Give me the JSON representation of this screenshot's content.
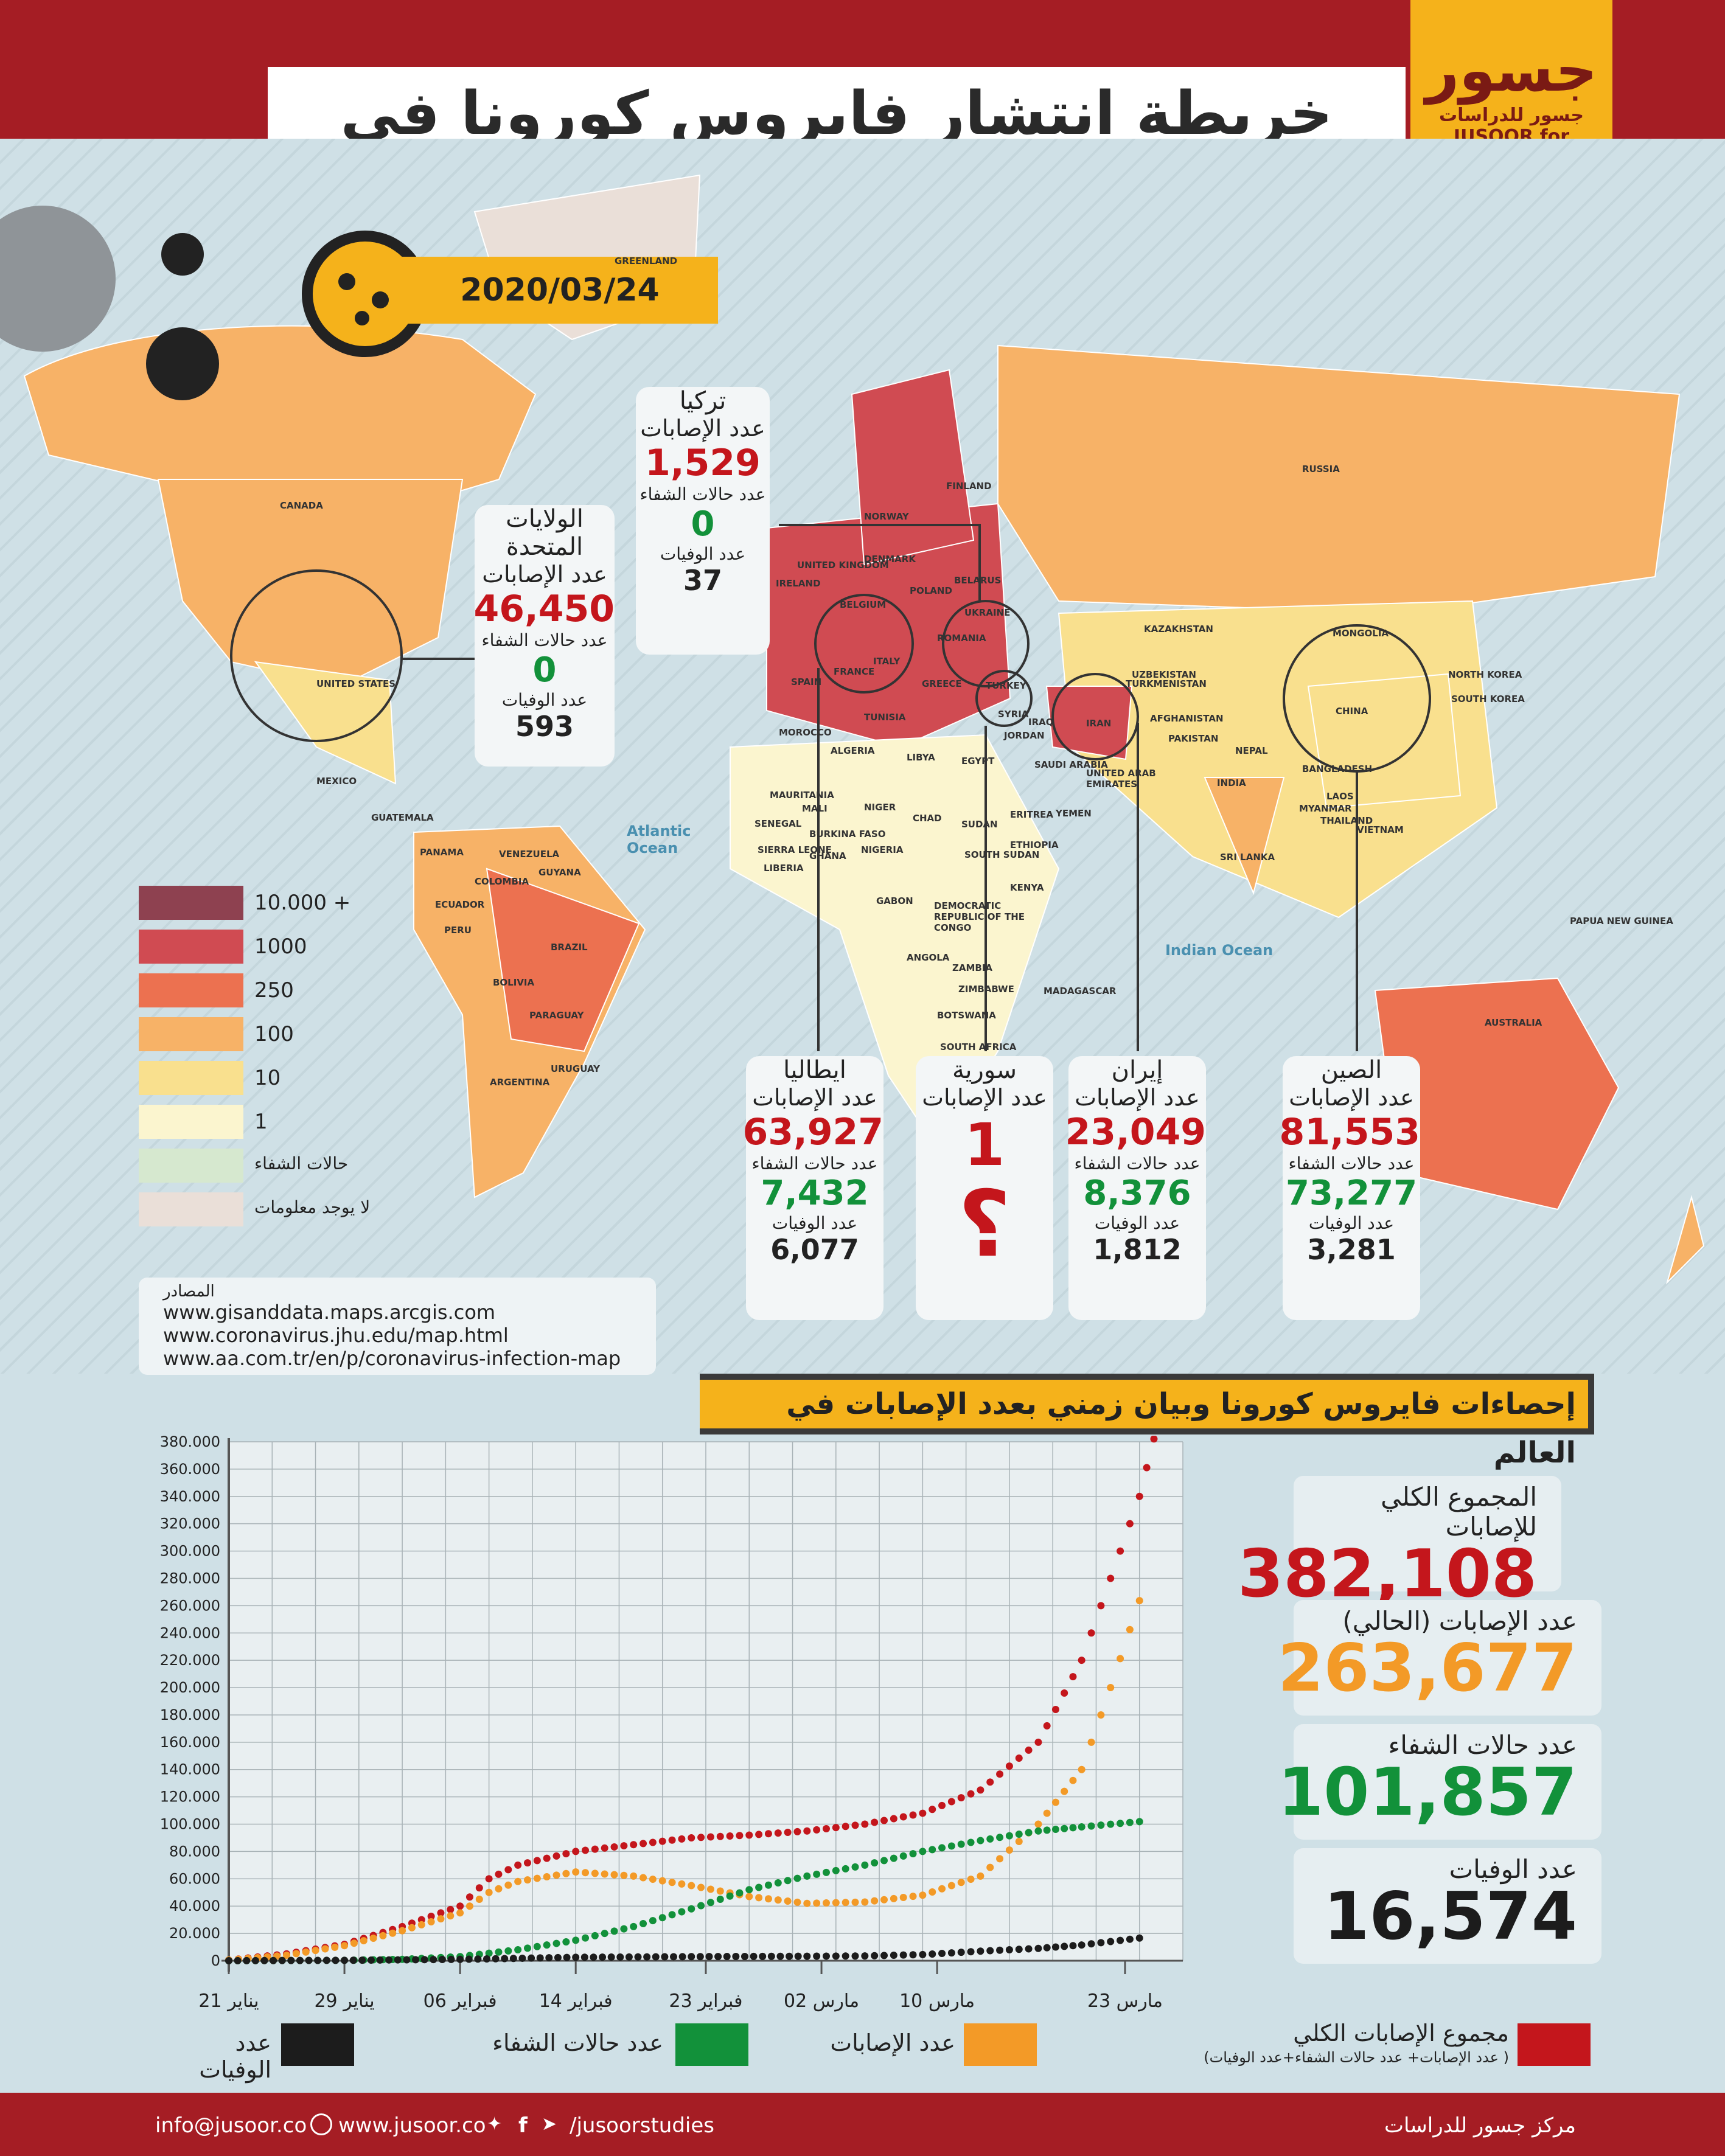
{
  "header": {
    "title": "خريطة انتشار فايروس كورونا في العالم",
    "logo_main": "جسور",
    "logo_ar": "جسور للدراسات",
    "logo_en": "JUSOOR for STUDIES",
    "date": "2020/03/24"
  },
  "map_labels": [
    "CANADA",
    "GREENLAND",
    "RUSSIA",
    "FINLAND",
    "NORWAY",
    "DENMARK",
    "UNITED KINGDOM",
    "IRELAND",
    "BELARUS",
    "POLAND",
    "UKRAINE",
    "ROMANIA",
    "BELGIUM",
    "FRANCE",
    "SPAIN",
    "ITALY",
    "GREECE",
    "TURKEY",
    "SYRIA",
    "IRAQ",
    "IRAN",
    "KAZAKHSTAN",
    "UZBEKISTAN",
    "TURKMENISTAN",
    "AFGHANISTAN",
    "PAKISTAN",
    "MONGOLIA",
    "CHINA",
    "NORTH KOREA",
    "SOUTH KOREA",
    "NEPAL",
    "BANGLADESH",
    "INDIA",
    "MYANMAR",
    "LAOS",
    "THAILAND",
    "VIETNAM",
    "SRI LANKA",
    "PAPUA NEW GUINEA",
    "AUSTRALIA",
    "UNITED STATES",
    "MEXICO",
    "GUATEMALA",
    "PANAMA",
    "VENEZUELA",
    "GUYANA",
    "COLOMBIA",
    "ECUADOR",
    "PERU",
    "BRAZIL",
    "BOLIVIA",
    "PARAGUAY",
    "ARGENTINA",
    "URUGUAY",
    "MOROCCO",
    "ALGERIA",
    "LIBYA",
    "EGYPT",
    "TUNISIA",
    "SAUDI ARABIA",
    "UNITED ARAB EMIRATES",
    "YEMEN",
    "JORDAN",
    "MAURITANIA",
    "MALI",
    "NIGER",
    "CHAD",
    "SUDAN",
    "ERITREA",
    "ETHIOPIA",
    "SOUTH SUDAN",
    "SENEGAL",
    "BURKINA FASO",
    "NIGERIA",
    "GHANA",
    "SIERRA LEONE",
    "LIBERIA",
    "GABON",
    "DEMOCRATIC REPUBLIC OF THE CONGO",
    "KENYA",
    "ANGOLA",
    "ZAMBIA",
    "ZIMBABWE",
    "BOTSWANA",
    "SOUTH AFRICA",
    "MADAGASCAR",
    "Atlantic Ocean",
    "Indian Ocean"
  ],
  "countries": {
    "usa": {
      "name": "الولايات المتحدة",
      "cases_label": "عدد الإصابات",
      "cases": "46,450",
      "rec_label": "عدد حالات الشفاء",
      "rec": "0",
      "deaths_label": "عدد الوفيات",
      "deaths": "593"
    },
    "turkey": {
      "name": "تركيا",
      "cases_label": "عدد الإصابات",
      "cases": "1,529",
      "rec_label": "عدد حالات الشفاء",
      "rec": "0",
      "deaths_label": "عدد الوفيات",
      "deaths": "37"
    },
    "italy": {
      "name": "ايطاليا",
      "cases_label": "عدد الإصابات",
      "cases": "63,927",
      "rec_label": "عدد حالات الشفاء",
      "rec": "7,432",
      "deaths_label": "عدد الوفيات",
      "deaths": "6,077"
    },
    "syria": {
      "name": "سورية",
      "cases_label": "عدد الإصابات",
      "cases": "1",
      "unknown": "؟"
    },
    "iran": {
      "name": "إيران",
      "cases_label": "عدد الإصابات",
      "cases": "23,049",
      "rec_label": "عدد حالات الشفاء",
      "rec": "8,376",
      "deaths_label": "عدد الوفيات",
      "deaths": "1,812"
    },
    "china": {
      "name": "الصين",
      "cases_label": "عدد الإصابات",
      "cases": "81,553",
      "rec_label": "عدد حالات الشفاء",
      "rec": "73,277",
      "deaths_label": "عدد الوفيات",
      "deaths": "3,281"
    }
  },
  "legend": [
    {
      "label": "10.000 +",
      "color": "#8e4150"
    },
    {
      "label": "1000",
      "color": "#d04b52"
    },
    {
      "label": "250",
      "color": "#ec7150"
    },
    {
      "label": "100",
      "color": "#f7b267"
    },
    {
      "label": "10",
      "color": "#f9e08e"
    },
    {
      "label": "1",
      "color": "#fbf5cf"
    },
    {
      "label": "حالات الشفاء",
      "color": "#d6e8cf"
    },
    {
      "label": "لا يوجد معلومات",
      "color": "#eadfd8"
    }
  ],
  "sources": {
    "title": "المصادر",
    "lines": [
      "www.gisanddata.maps.arcgis.com",
      "www.coronavirus.jhu.edu/map.html",
      "www.aa.com.tr/en/p/coronavirus-infection-map"
    ]
  },
  "section_title": "إحصاءات فايروس كورونا وبيان زمني بعدد الإصابات في العالم",
  "stats": {
    "total_label": "المجموع الكلي للإصابات",
    "total": "382,108",
    "current_label": "عدد الإصابات (الحالي)",
    "current": "263,677",
    "recovered_label": "عدد حالات الشفاء",
    "recovered": "101,857",
    "deaths_label": "عدد الوفيات",
    "deaths": "16,574"
  },
  "chart_data": {
    "type": "scatter",
    "ytick_labels": [
      "0",
      "20.000",
      "40.000",
      "60.000",
      "80.000",
      "100.000",
      "120.000",
      "140.000",
      "160.000",
      "180.000",
      "200.000",
      "220.000",
      "240.000",
      "260.000",
      "280.000",
      "300.000",
      "320.000",
      "340.000",
      "360.000",
      "380.000"
    ],
    "ylim": [
      0,
      380000
    ],
    "x_tick_labels": [
      "21 يناير",
      "29 يناير",
      "06 فبراير",
      "14 فبراير",
      "23 فبراير",
      "02 مارس",
      "10 مارس",
      "23 مارس"
    ],
    "grid": true,
    "series": [
      {
        "name": "مجموع الإصابات الكلي",
        "note": "( عدد الإصابات+ عدد حالات الشفاء+عدد الوفيات)",
        "color": "#c4161c",
        "points": [
          [
            0,
            500
          ],
          [
            4,
            5000
          ],
          [
            8,
            12000
          ],
          [
            12,
            25000
          ],
          [
            16,
            40000
          ],
          [
            18,
            60000
          ],
          [
            20,
            70000
          ],
          [
            24,
            80000
          ],
          [
            28,
            85000
          ],
          [
            32,
            90000
          ],
          [
            36,
            92000
          ],
          [
            40,
            95000
          ],
          [
            44,
            100000
          ],
          [
            48,
            108000
          ],
          [
            52,
            125000
          ],
          [
            56,
            160000
          ],
          [
            59,
            220000
          ],
          [
            61,
            280000
          ],
          [
            63,
            340000
          ],
          [
            64,
            382108
          ]
        ]
      },
      {
        "name": "عدد الإصابات",
        "color": "#f39a27",
        "points": [
          [
            0,
            500
          ],
          [
            4,
            4000
          ],
          [
            8,
            11000
          ],
          [
            12,
            22000
          ],
          [
            16,
            35000
          ],
          [
            18,
            50000
          ],
          [
            20,
            58000
          ],
          [
            24,
            65000
          ],
          [
            28,
            62000
          ],
          [
            32,
            55000
          ],
          [
            36,
            47000
          ],
          [
            40,
            42000
          ],
          [
            44,
            43000
          ],
          [
            48,
            48000
          ],
          [
            52,
            62000
          ],
          [
            56,
            100000
          ],
          [
            59,
            140000
          ],
          [
            61,
            200000
          ],
          [
            63,
            263677
          ]
        ]
      },
      {
        "name": "عدد حالات الشفاء",
        "color": "#12913a",
        "points": [
          [
            0,
            0
          ],
          [
            8,
            300
          ],
          [
            12,
            1000
          ],
          [
            16,
            3000
          ],
          [
            20,
            8000
          ],
          [
            24,
            15000
          ],
          [
            28,
            25000
          ],
          [
            32,
            38000
          ],
          [
            36,
            52000
          ],
          [
            40,
            62000
          ],
          [
            44,
            70000
          ],
          [
            48,
            80000
          ],
          [
            52,
            88000
          ],
          [
            56,
            95000
          ],
          [
            59,
            98000
          ],
          [
            63,
            101857
          ]
        ]
      },
      {
        "name": "عدد الوفيات",
        "color": "#1c1c1c",
        "points": [
          [
            0,
            17
          ],
          [
            8,
            300
          ],
          [
            16,
            1000
          ],
          [
            24,
            2500
          ],
          [
            32,
            3000
          ],
          [
            40,
            3300
          ],
          [
            44,
            3500
          ],
          [
            48,
            4500
          ],
          [
            52,
            7000
          ],
          [
            56,
            9000
          ],
          [
            59,
            11500
          ],
          [
            63,
            16574
          ]
        ]
      }
    ]
  },
  "chart_legend": [
    {
      "label": "عدد الوفيات",
      "color": "#1c1c1c"
    },
    {
      "label": "عدد حالات الشفاء",
      "color": "#12913a"
    },
    {
      "label": "عدد الإصابات",
      "color": "#f39a27"
    },
    {
      "label": "مجموع الإصابات الكلي",
      "sub": "( عدد الإصابات+ عدد حالات الشفاء+عدد الوفيات)",
      "color": "#c4161c"
    }
  ],
  "footer": {
    "email": "info@jusoor.co",
    "web": "www.jusoor.co",
    "social": "/jusoorstudies",
    "org": "مركز جسور للدراسات"
  }
}
